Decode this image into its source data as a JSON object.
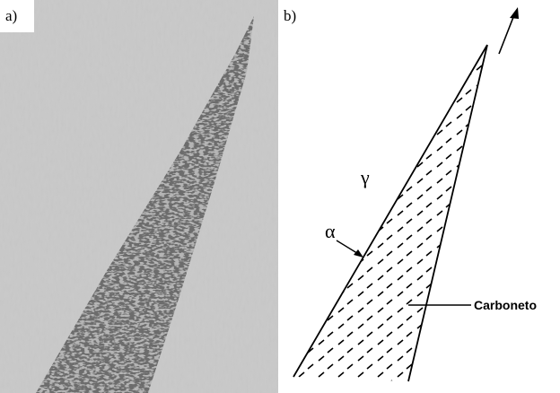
{
  "panels": [
    {
      "label": "a)"
    },
    {
      "label": "b)",
      "phases": {
        "matrix": "γ",
        "interface": "α",
        "precipitate": "Carboneto"
      }
    }
  ]
}
